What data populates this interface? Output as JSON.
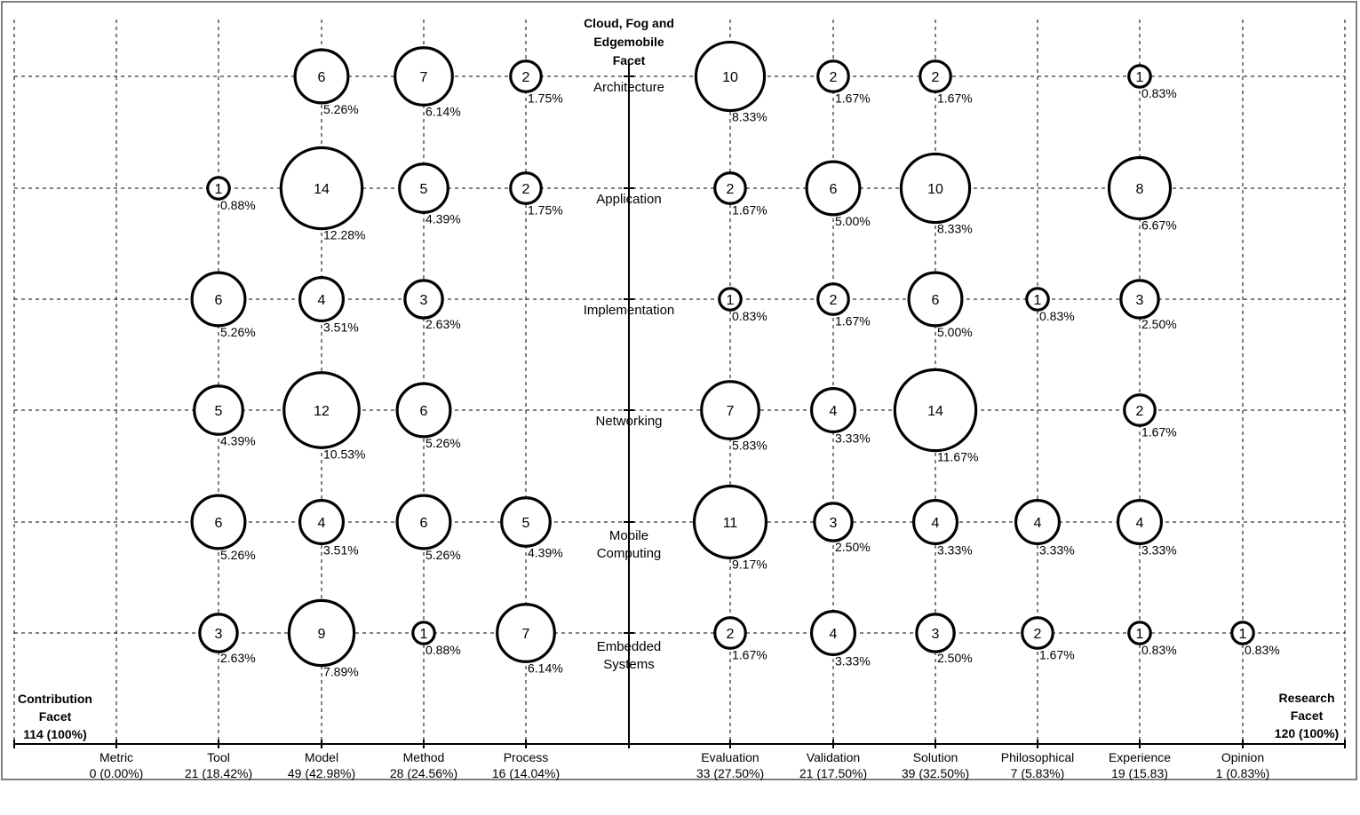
{
  "chart_data": {
    "type": "bubble",
    "title": [
      "Cloud, Fog and",
      "Edgemobile",
      "Facet"
    ],
    "left_facet": {
      "label": [
        "Contribution",
        "Facet",
        "114 (100%)"
      ],
      "categories": [
        {
          "name": "Metric",
          "total": "0 (0.00%)"
        },
        {
          "name": "Tool",
          "total": "21 (18.42%)"
        },
        {
          "name": "Model",
          "total": "49 (42.98%)"
        },
        {
          "name": "Method",
          "total": "28 (24.56%)"
        },
        {
          "name": "Process",
          "total": "16 (14.04%)"
        }
      ]
    },
    "right_facet": {
      "label": [
        "Research",
        "Facet",
        "120 (100%)"
      ],
      "categories": [
        {
          "name": "Evaluation",
          "total": "33 (27.50%)"
        },
        {
          "name": "Validation",
          "total": "21 (17.50%)"
        },
        {
          "name": "Solution",
          "total": "39 (32.50%)"
        },
        {
          "name": "Philosophical",
          "total": "7 (5.83%)"
        },
        {
          "name": "Experience",
          "total": "19 (15.83)"
        },
        {
          "name": "Opinion",
          "total": "1 (0.83%)"
        }
      ]
    },
    "rows": [
      {
        "name": [
          "Architecture"
        ]
      },
      {
        "name": [
          "Application"
        ]
      },
      {
        "name": [
          "Implementation"
        ]
      },
      {
        "name": [
          "Networking"
        ]
      },
      {
        "name": [
          "Mobile",
          "Computing"
        ]
      },
      {
        "name": [
          "Embedded",
          "Systems"
        ]
      }
    ],
    "bubbles": [
      {
        "side": "left",
        "col": 2,
        "row": 0,
        "value": 6,
        "pct": "5.26%"
      },
      {
        "side": "left",
        "col": 3,
        "row": 0,
        "value": 7,
        "pct": "6.14%"
      },
      {
        "side": "left",
        "col": 4,
        "row": 0,
        "value": 2,
        "pct": "1.75%"
      },
      {
        "side": "right",
        "col": 0,
        "row": 0,
        "value": 10,
        "pct": "8.33%"
      },
      {
        "side": "right",
        "col": 1,
        "row": 0,
        "value": 2,
        "pct": "1.67%"
      },
      {
        "side": "right",
        "col": 2,
        "row": 0,
        "value": 2,
        "pct": "1.67%"
      },
      {
        "side": "right",
        "col": 4,
        "row": 0,
        "value": 1,
        "pct": "0.83%"
      },
      {
        "side": "left",
        "col": 1,
        "row": 1,
        "value": 1,
        "pct": "0.88%"
      },
      {
        "side": "left",
        "col": 2,
        "row": 1,
        "value": 14,
        "pct": "12.28%"
      },
      {
        "side": "left",
        "col": 3,
        "row": 1,
        "value": 5,
        "pct": "4.39%"
      },
      {
        "side": "left",
        "col": 4,
        "row": 1,
        "value": 2,
        "pct": "1.75%"
      },
      {
        "side": "right",
        "col": 0,
        "row": 1,
        "value": 2,
        "pct": "1.67%"
      },
      {
        "side": "right",
        "col": 1,
        "row": 1,
        "value": 6,
        "pct": "5.00%"
      },
      {
        "side": "right",
        "col": 2,
        "row": 1,
        "value": 10,
        "pct": "8.33%"
      },
      {
        "side": "right",
        "col": 4,
        "row": 1,
        "value": 8,
        "pct": "6.67%"
      },
      {
        "side": "left",
        "col": 1,
        "row": 2,
        "value": 6,
        "pct": "5.26%"
      },
      {
        "side": "left",
        "col": 2,
        "row": 2,
        "value": 4,
        "pct": "3.51%"
      },
      {
        "side": "left",
        "col": 3,
        "row": 2,
        "value": 3,
        "pct": "2.63%"
      },
      {
        "side": "right",
        "col": 0,
        "row": 2,
        "value": 1,
        "pct": "0.83%"
      },
      {
        "side": "right",
        "col": 1,
        "row": 2,
        "value": 2,
        "pct": "1.67%"
      },
      {
        "side": "right",
        "col": 2,
        "row": 2,
        "value": 6,
        "pct": "5.00%"
      },
      {
        "side": "right",
        "col": 3,
        "row": 2,
        "value": 1,
        "pct": "0.83%"
      },
      {
        "side": "right",
        "col": 4,
        "row": 2,
        "value": 3,
        "pct": "2.50%"
      },
      {
        "side": "left",
        "col": 1,
        "row": 3,
        "value": 5,
        "pct": "4.39%"
      },
      {
        "side": "left",
        "col": 2,
        "row": 3,
        "value": 12,
        "pct": "10.53%"
      },
      {
        "side": "left",
        "col": 3,
        "row": 3,
        "value": 6,
        "pct": "5.26%"
      },
      {
        "side": "right",
        "col": 0,
        "row": 3,
        "value": 7,
        "pct": "5.83%"
      },
      {
        "side": "right",
        "col": 1,
        "row": 3,
        "value": 4,
        "pct": "3.33%"
      },
      {
        "side": "right",
        "col": 2,
        "row": 3,
        "value": 14,
        "pct": "11.67%"
      },
      {
        "side": "right",
        "col": 4,
        "row": 3,
        "value": 2,
        "pct": "1.67%"
      },
      {
        "side": "left",
        "col": 1,
        "row": 4,
        "value": 6,
        "pct": "5.26%"
      },
      {
        "side": "left",
        "col": 2,
        "row": 4,
        "value": 4,
        "pct": "3.51%"
      },
      {
        "side": "left",
        "col": 3,
        "row": 4,
        "value": 6,
        "pct": "5.26%"
      },
      {
        "side": "left",
        "col": 4,
        "row": 4,
        "value": 5,
        "pct": "4.39%"
      },
      {
        "side": "right",
        "col": 0,
        "row": 4,
        "value": 11,
        "pct": "9.17%"
      },
      {
        "side": "right",
        "col": 1,
        "row": 4,
        "value": 3,
        "pct": "2.50%"
      },
      {
        "side": "right",
        "col": 2,
        "row": 4,
        "value": 4,
        "pct": "3.33%"
      },
      {
        "side": "right",
        "col": 3,
        "row": 4,
        "value": 4,
        "pct": "3.33%"
      },
      {
        "side": "right",
        "col": 4,
        "row": 4,
        "value": 4,
        "pct": "3.33%"
      },
      {
        "side": "left",
        "col": 1,
        "row": 5,
        "value": 3,
        "pct": "2.63%"
      },
      {
        "side": "left",
        "col": 2,
        "row": 5,
        "value": 9,
        "pct": "7.89%"
      },
      {
        "side": "left",
        "col": 3,
        "row": 5,
        "value": 1,
        "pct": "0.88%"
      },
      {
        "side": "left",
        "col": 4,
        "row": 5,
        "value": 7,
        "pct": "6.14%"
      },
      {
        "side": "right",
        "col": 0,
        "row": 5,
        "value": 2,
        "pct": "1.67%"
      },
      {
        "side": "right",
        "col": 1,
        "row": 5,
        "value": 4,
        "pct": "3.33%"
      },
      {
        "side": "right",
        "col": 2,
        "row": 5,
        "value": 3,
        "pct": "2.50%"
      },
      {
        "side": "right",
        "col": 3,
        "row": 5,
        "value": 2,
        "pct": "1.67%"
      },
      {
        "side": "right",
        "col": 4,
        "row": 5,
        "value": 1,
        "pct": "0.83%"
      },
      {
        "side": "right",
        "col": 5,
        "row": 5,
        "value": 1,
        "pct": "0.83%"
      }
    ]
  }
}
